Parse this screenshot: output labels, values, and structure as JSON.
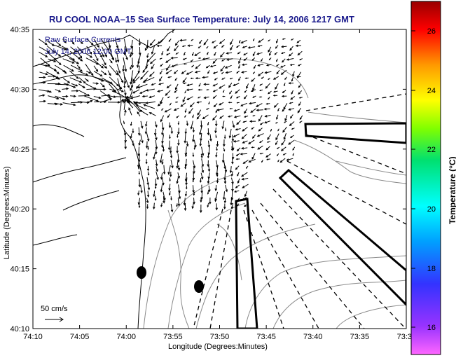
{
  "title": "RU COOL  NOAA–15  Sea Surface Temperature:  July 14, 2006 1217 GMT",
  "overlay": {
    "line1": "Raw Surface Currents",
    "line2": "July 14, 2006 12:00 GMT"
  },
  "scale_label": "50 cm/s",
  "axes": {
    "xlabel": "Longitude (Degrees:Minutes)",
    "ylabel": "Latitude (Degrees:Minutes)",
    "x_ticks": [
      "74:10",
      "74:05",
      "74:00",
      "73:55",
      "73:50",
      "73:45",
      "73:40",
      "73:35",
      "73:3"
    ],
    "y_ticks": [
      "40:35",
      "40:30",
      "40:25",
      "40:20",
      "40:15",
      "40:10"
    ]
  },
  "colorbar": {
    "title": "Temperature (°C)",
    "ticks": [
      "26",
      "24",
      "22",
      "20",
      "18",
      "16"
    ]
  },
  "colors": {
    "title": "#1a1a8c",
    "land": "#000000",
    "bathymetry": "#888888"
  }
}
